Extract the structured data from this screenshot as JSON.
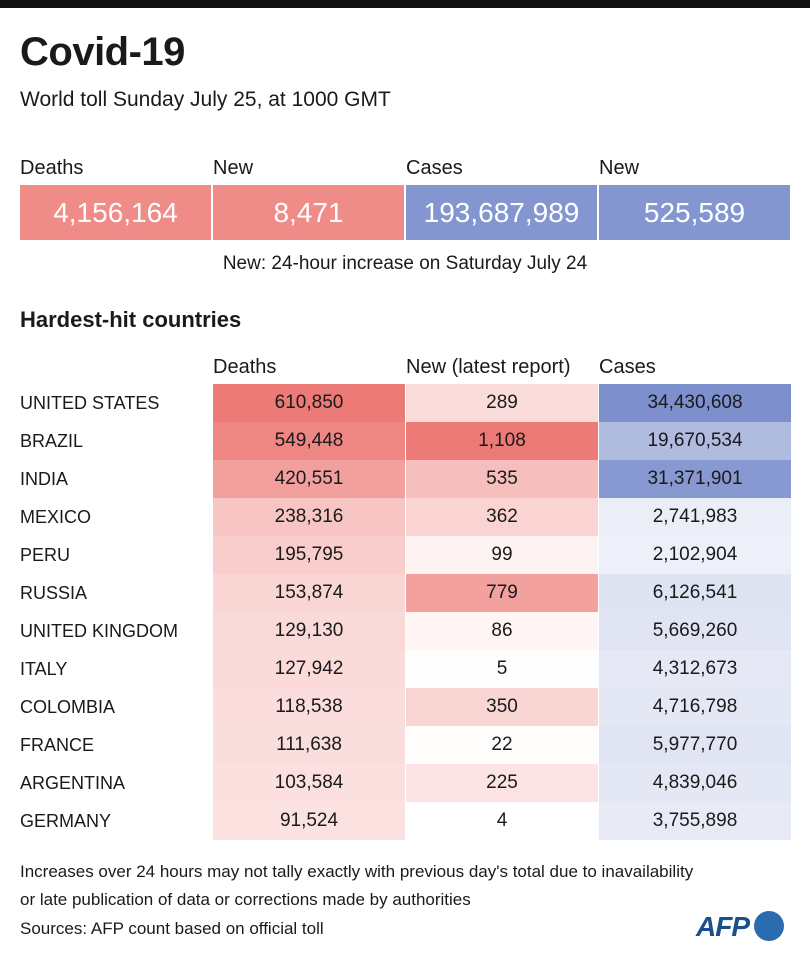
{
  "header": {
    "title": "Covid-19",
    "subtitle": "World toll Sunday July 25,  at 1000 GMT"
  },
  "summary": {
    "items": [
      {
        "label": "Deaths",
        "value": "4,156,164",
        "color": "#f08c88"
      },
      {
        "label": "New",
        "value": "8,471",
        "color": "#f08c88"
      },
      {
        "label": "Cases",
        "value": "193,687,989",
        "color": "#8496cf"
      },
      {
        "label": "New",
        "value": "525,589",
        "color": "#8496cf"
      }
    ],
    "note": "New: 24-hour increase on Saturday July 24"
  },
  "section_title": "Hardest-hit countries",
  "chart_data": {
    "type": "table",
    "columns": [
      "Deaths",
      "New (latest report)",
      "Cases"
    ],
    "rows": [
      {
        "country": "UNITED STATES",
        "deaths": 610850,
        "new": 289,
        "cases": 34430608
      },
      {
        "country": "BRAZIL",
        "deaths": 549448,
        "new": 1108,
        "cases": 19670534
      },
      {
        "country": "INDIA",
        "deaths": 420551,
        "new": 535,
        "cases": 31371901
      },
      {
        "country": "MEXICO",
        "deaths": 238316,
        "new": 362,
        "cases": 2741983
      },
      {
        "country": "PERU",
        "deaths": 195795,
        "new": 99,
        "cases": 2102904
      },
      {
        "country": "RUSSIA",
        "deaths": 153874,
        "new": 779,
        "cases": 6126541
      },
      {
        "country": "UNITED KINGDOM",
        "deaths": 129130,
        "new": 86,
        "cases": 5669260
      },
      {
        "country": "ITALY",
        "deaths": 127942,
        "new": 5,
        "cases": 4312673
      },
      {
        "country": "COLOMBIA",
        "deaths": 118538,
        "new": 350,
        "cases": 4716798
      },
      {
        "country": "FRANCE",
        "deaths": 111638,
        "new": 22,
        "cases": 5977770
      },
      {
        "country": "ARGENTINA",
        "deaths": 103584,
        "new": 225,
        "cases": 4839046
      },
      {
        "country": "GERMANY",
        "deaths": 91524,
        "new": 4,
        "cases": 3755898
      }
    ],
    "colors": {
      "deaths_new": "#ec7a76",
      "cases": "#7d8fcc"
    }
  },
  "footer": {
    "note_line1": "Increases over 24 hours may not tally exactly with previous day's total due to inavailability",
    "note_line2": "or late publication of data or corrections made by authorities",
    "sources": "Sources: AFP count based on official toll",
    "logo": "AFP"
  }
}
